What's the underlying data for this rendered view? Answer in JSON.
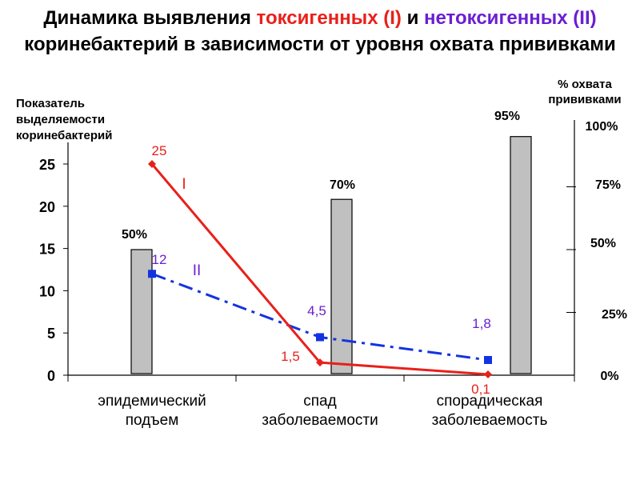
{
  "title": {
    "part1": "Динамика выявления ",
    "toxigenic": "токсигенных (I)",
    "part2": " и ",
    "nontoxigenic": "нетоксигенных (II)",
    "line2": "коринебактерий в зависимости от уровня охвата прививками"
  },
  "colors": {
    "toxigenic": "#e8201b",
    "nontoxigenic": "#1433e0",
    "nontoxigenic_label": "#6a1fd1",
    "bars": "#c0c0c0"
  },
  "chart_data": {
    "type": "bar+line",
    "categories": [
      "эпидемический подъем",
      "спад заболеваемости",
      "спорадическая заболеваемость"
    ],
    "category_lines": [
      [
        "эпидемический",
        "подъем"
      ],
      [
        "спад",
        "заболеваемости"
      ],
      [
        "спорадическая",
        "заболеваемость"
      ]
    ],
    "y_left": {
      "label_lines": [
        "Показатель",
        "выделяемости",
        "коринебактерий"
      ],
      "ticks": [
        "0",
        "5",
        "10",
        "15",
        "20",
        "25"
      ],
      "range": [
        0,
        25
      ]
    },
    "y_right": {
      "label_lines": [
        "% охвата",
        "прививками"
      ],
      "ticks": [
        "0%",
        "25%",
        "50%",
        "75%",
        "100%"
      ],
      "range": [
        0,
        100
      ]
    },
    "bars": {
      "axis": "right",
      "values": [
        50,
        70,
        95
      ],
      "labels": [
        "50%",
        "70%",
        "95%"
      ]
    },
    "series": [
      {
        "name": "I",
        "values": [
          25,
          1.5,
          0.1
        ],
        "labels": [
          "25",
          "1,5",
          "0,1"
        ],
        "style": "solid",
        "marker": "diamond",
        "color": "#e8201b"
      },
      {
        "name": "II",
        "values": [
          12,
          4.5,
          1.8
        ],
        "labels": [
          "12",
          "4,5",
          "1,8"
        ],
        "style": "dash-dot",
        "marker": "square",
        "color": "#1433e0"
      }
    ]
  }
}
